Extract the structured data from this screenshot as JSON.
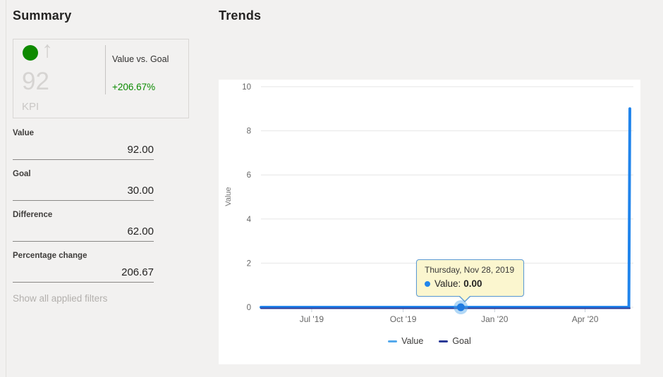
{
  "summary": {
    "title": "Summary",
    "kpi_card": {
      "big_value": "92",
      "kpi_label": "KPI",
      "trend_arrow_glyph": "↑",
      "status_color": "#0e8a00",
      "comparison_label": "Value vs. Goal",
      "comparison_value": "+206.67%",
      "comparison_color": "#0b8a00"
    },
    "fields": [
      {
        "label": "Value",
        "value": "92.00"
      },
      {
        "label": "Goal",
        "value": "30.00"
      },
      {
        "label": "Difference",
        "value": "62.00"
      },
      {
        "label": "Percentage change",
        "value": "206.67"
      }
    ],
    "filters_link": "Show all applied filters"
  },
  "trends": {
    "title": "Trends",
    "chart_data": {
      "type": "line",
      "title": "Trends",
      "xlabel": "",
      "ylabel": "Value",
      "ylim": [
        0,
        10
      ],
      "y_ticks": [
        0,
        2,
        4,
        6,
        8,
        10
      ],
      "x_ticks": [
        {
          "label": "Jul '19",
          "date": "2019-07-01"
        },
        {
          "label": "Oct '19",
          "date": "2019-10-01"
        },
        {
          "label": "Jan '20",
          "date": "2020-01-01"
        },
        {
          "label": "Apr '20",
          "date": "2020-04-01"
        }
      ],
      "grid": true,
      "legend_position": "bottom",
      "series": [
        {
          "name": "Value",
          "color": "#2185ec",
          "legend_color": "#54a9ec",
          "points": [
            [
              "2019-05-11",
              0
            ],
            [
              "2019-11-28",
              0
            ],
            [
              "2020-05-15",
              0
            ],
            [
              "2020-05-16",
              9
            ]
          ]
        },
        {
          "name": "Goal",
          "color": "#2b3a97",
          "legend_color": "#2b3a97",
          "points": [
            [
              "2019-05-11",
              0
            ],
            [
              "2020-05-16",
              0
            ]
          ]
        }
      ],
      "highlighted_point": {
        "series": "Value",
        "date": "2019-11-28",
        "value": 0
      }
    },
    "tooltip": {
      "date": "Thursday, Nov 28, 2019",
      "label": "Value:",
      "value": "0.00",
      "bullet_color": "#2185ec"
    },
    "legend": [
      {
        "label": "Value",
        "color": "#54a9ec"
      },
      {
        "label": "Goal",
        "color": "#2b3a97"
      }
    ]
  }
}
